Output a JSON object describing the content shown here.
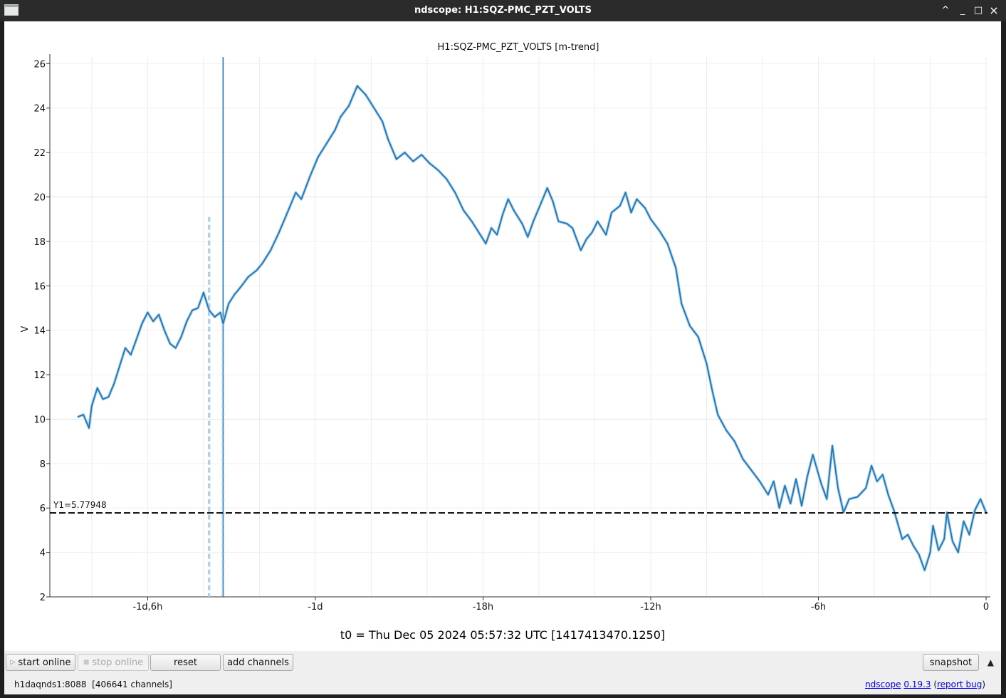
{
  "window": {
    "title": "ndscope: H1:SQZ-PMC_PZT_VOLTS",
    "controls": [
      "^",
      "_",
      "□",
      "×"
    ]
  },
  "plot": {
    "title": "H1:SQZ-PMC_PZT_VOLTS [m-trend]",
    "cursor_label": "Y1=5.77948",
    "t0_text": "t0 = Thu Dec 05 2024 05:57:32 UTC [1417413470.1250]"
  },
  "chart_data": {
    "type": "line",
    "title": "H1:SQZ-PMC_PZT_VOLTS [m-trend]",
    "xlabel": "",
    "ylabel": "V",
    "x_unit": "hours relative to t0",
    "xlim": [
      -33.5,
      0.05
    ],
    "ylim": [
      2,
      26.3
    ],
    "grid": true,
    "x_ticks": [
      {
        "value": -30,
        "label": "-1d,6h"
      },
      {
        "value": -24,
        "label": "-1d"
      },
      {
        "value": -18,
        "label": "-18h"
      },
      {
        "value": -12,
        "label": "-12h"
      },
      {
        "value": -6,
        "label": "-6h"
      },
      {
        "value": 0,
        "label": "0"
      }
    ],
    "y_ticks": [
      {
        "value": 2,
        "label": "2"
      },
      {
        "value": 4,
        "label": "4"
      },
      {
        "value": 6,
        "label": "6"
      },
      {
        "value": 8,
        "label": "8"
      },
      {
        "value": 10,
        "label": "10"
      },
      {
        "value": 12,
        "label": "12"
      },
      {
        "value": 14,
        "label": "14"
      },
      {
        "value": 16,
        "label": "16"
      },
      {
        "value": 18,
        "label": "18"
      },
      {
        "value": 20,
        "label": "20"
      },
      {
        "value": 22,
        "label": "22"
      },
      {
        "value": 24,
        "label": "24"
      },
      {
        "value": 26,
        "label": "26"
      }
    ],
    "cursor_y": 5.77948,
    "series": [
      {
        "color": "#1f77b4",
        "points": [
          [
            -32.5,
            10.1
          ],
          [
            -32.3,
            10.2
          ],
          [
            -32.1,
            9.6
          ],
          [
            -32.0,
            10.6
          ],
          [
            -31.8,
            11.4
          ],
          [
            -31.6,
            10.9
          ],
          [
            -31.4,
            11.0
          ],
          [
            -31.2,
            11.6
          ],
          [
            -31.0,
            12.4
          ],
          [
            -30.8,
            13.2
          ],
          [
            -30.6,
            12.9
          ],
          [
            -30.4,
            13.6
          ],
          [
            -30.2,
            14.3
          ],
          [
            -30.0,
            14.8
          ],
          [
            -29.8,
            14.4
          ],
          [
            -29.6,
            14.7
          ],
          [
            -29.4,
            14.0
          ],
          [
            -29.2,
            13.4
          ],
          [
            -29.0,
            13.2
          ],
          [
            -28.8,
            13.7
          ],
          [
            -28.6,
            14.4
          ],
          [
            -28.4,
            14.9
          ],
          [
            -28.2,
            15.0
          ],
          [
            -28.0,
            15.7
          ],
          [
            -27.8,
            14.9
          ],
          [
            -27.6,
            14.6
          ],
          [
            -27.4,
            14.8
          ],
          [
            -27.3,
            14.3
          ],
          [
            -27.1,
            15.2
          ],
          [
            -26.9,
            15.6
          ],
          [
            -26.7,
            15.9
          ],
          [
            -26.4,
            16.4
          ],
          [
            -26.1,
            16.7
          ],
          [
            -25.9,
            17.0
          ],
          [
            -25.6,
            17.6
          ],
          [
            -25.3,
            18.4
          ],
          [
            -25.0,
            19.3
          ],
          [
            -24.7,
            20.2
          ],
          [
            -24.5,
            19.9
          ],
          [
            -24.2,
            20.9
          ],
          [
            -23.9,
            21.8
          ],
          [
            -23.6,
            22.4
          ],
          [
            -23.3,
            23.0
          ],
          [
            -23.1,
            23.6
          ],
          [
            -22.8,
            24.1
          ],
          [
            -22.5,
            25.0
          ],
          [
            -22.2,
            24.6
          ],
          [
            -21.9,
            24.0
          ],
          [
            -21.6,
            23.4
          ],
          [
            -21.4,
            22.6
          ],
          [
            -21.1,
            21.7
          ],
          [
            -20.8,
            22.0
          ],
          [
            -20.5,
            21.6
          ],
          [
            -20.2,
            21.9
          ],
          [
            -19.9,
            21.5
          ],
          [
            -19.6,
            21.2
          ],
          [
            -19.3,
            20.8
          ],
          [
            -19.0,
            20.2
          ],
          [
            -18.7,
            19.4
          ],
          [
            -18.4,
            18.9
          ],
          [
            -18.1,
            18.3
          ],
          [
            -17.9,
            17.9
          ],
          [
            -17.7,
            18.6
          ],
          [
            -17.5,
            18.3
          ],
          [
            -17.3,
            19.2
          ],
          [
            -17.1,
            19.9
          ],
          [
            -16.9,
            19.4
          ],
          [
            -16.6,
            18.8
          ],
          [
            -16.4,
            18.2
          ],
          [
            -16.2,
            18.9
          ],
          [
            -16.0,
            19.5
          ],
          [
            -15.7,
            20.4
          ],
          [
            -15.5,
            19.8
          ],
          [
            -15.3,
            18.9
          ],
          [
            -15.0,
            18.8
          ],
          [
            -14.8,
            18.6
          ],
          [
            -14.5,
            17.6
          ],
          [
            -14.3,
            18.1
          ],
          [
            -14.1,
            18.4
          ],
          [
            -13.9,
            18.9
          ],
          [
            -13.6,
            18.3
          ],
          [
            -13.4,
            19.3
          ],
          [
            -13.1,
            19.6
          ],
          [
            -12.9,
            20.2
          ],
          [
            -12.7,
            19.3
          ],
          [
            -12.5,
            19.9
          ],
          [
            -12.2,
            19.5
          ],
          [
            -12.0,
            19.0
          ],
          [
            -11.7,
            18.5
          ],
          [
            -11.4,
            17.9
          ],
          [
            -11.1,
            16.8
          ],
          [
            -10.9,
            15.2
          ],
          [
            -10.6,
            14.2
          ],
          [
            -10.3,
            13.7
          ],
          [
            -10.0,
            12.5
          ],
          [
            -9.8,
            11.3
          ],
          [
            -9.6,
            10.2
          ],
          [
            -9.3,
            9.5
          ],
          [
            -9.0,
            9.0
          ],
          [
            -8.7,
            8.2
          ],
          [
            -8.4,
            7.7
          ],
          [
            -8.1,
            7.2
          ],
          [
            -7.8,
            6.6
          ],
          [
            -7.6,
            7.2
          ],
          [
            -7.4,
            6.0
          ],
          [
            -7.2,
            7.0
          ],
          [
            -7.0,
            6.2
          ],
          [
            -6.8,
            7.3
          ],
          [
            -6.6,
            6.1
          ],
          [
            -6.4,
            7.4
          ],
          [
            -6.2,
            8.4
          ],
          [
            -5.9,
            7.1
          ],
          [
            -5.7,
            6.4
          ],
          [
            -5.5,
            8.8
          ],
          [
            -5.3,
            6.9
          ],
          [
            -5.1,
            5.8
          ],
          [
            -4.9,
            6.4
          ],
          [
            -4.6,
            6.5
          ],
          [
            -4.3,
            6.9
          ],
          [
            -4.1,
            7.9
          ],
          [
            -3.9,
            7.2
          ],
          [
            -3.7,
            7.5
          ],
          [
            -3.5,
            6.6
          ],
          [
            -3.3,
            5.9
          ],
          [
            -3.0,
            4.6
          ],
          [
            -2.8,
            4.8
          ],
          [
            -2.6,
            4.3
          ],
          [
            -2.4,
            3.9
          ],
          [
            -2.2,
            3.2
          ],
          [
            -2.0,
            4.0
          ],
          [
            -1.9,
            5.2
          ],
          [
            -1.7,
            4.1
          ],
          [
            -1.5,
            4.6
          ],
          [
            -1.4,
            5.8
          ],
          [
            -1.2,
            4.5
          ],
          [
            -1.0,
            4.0
          ],
          [
            -0.8,
            5.4
          ],
          [
            -0.6,
            4.8
          ],
          [
            -0.4,
            5.9
          ],
          [
            -0.2,
            6.4
          ],
          [
            0.0,
            5.8
          ]
        ]
      }
    ],
    "spikes": [
      {
        "x": -27.3,
        "y_top": 26.3,
        "style": "solid"
      },
      {
        "x": -27.8,
        "y_top": 19.1,
        "style": "dashed-light"
      },
      {
        "x": -27.3,
        "y_top": 14.6,
        "style": "dashed-light"
      }
    ]
  },
  "toolbar": {
    "start_online": "start online",
    "stop_online": "stop online",
    "reset": "reset",
    "add_channels": "add channels",
    "snapshot": "snapshot",
    "expand_arrow": "▲"
  },
  "status": {
    "server": "h1daqnds1:8088  [406641 channels]",
    "app_name": "ndscope",
    "version": "0.19.3",
    "report_bug": "report bug"
  }
}
